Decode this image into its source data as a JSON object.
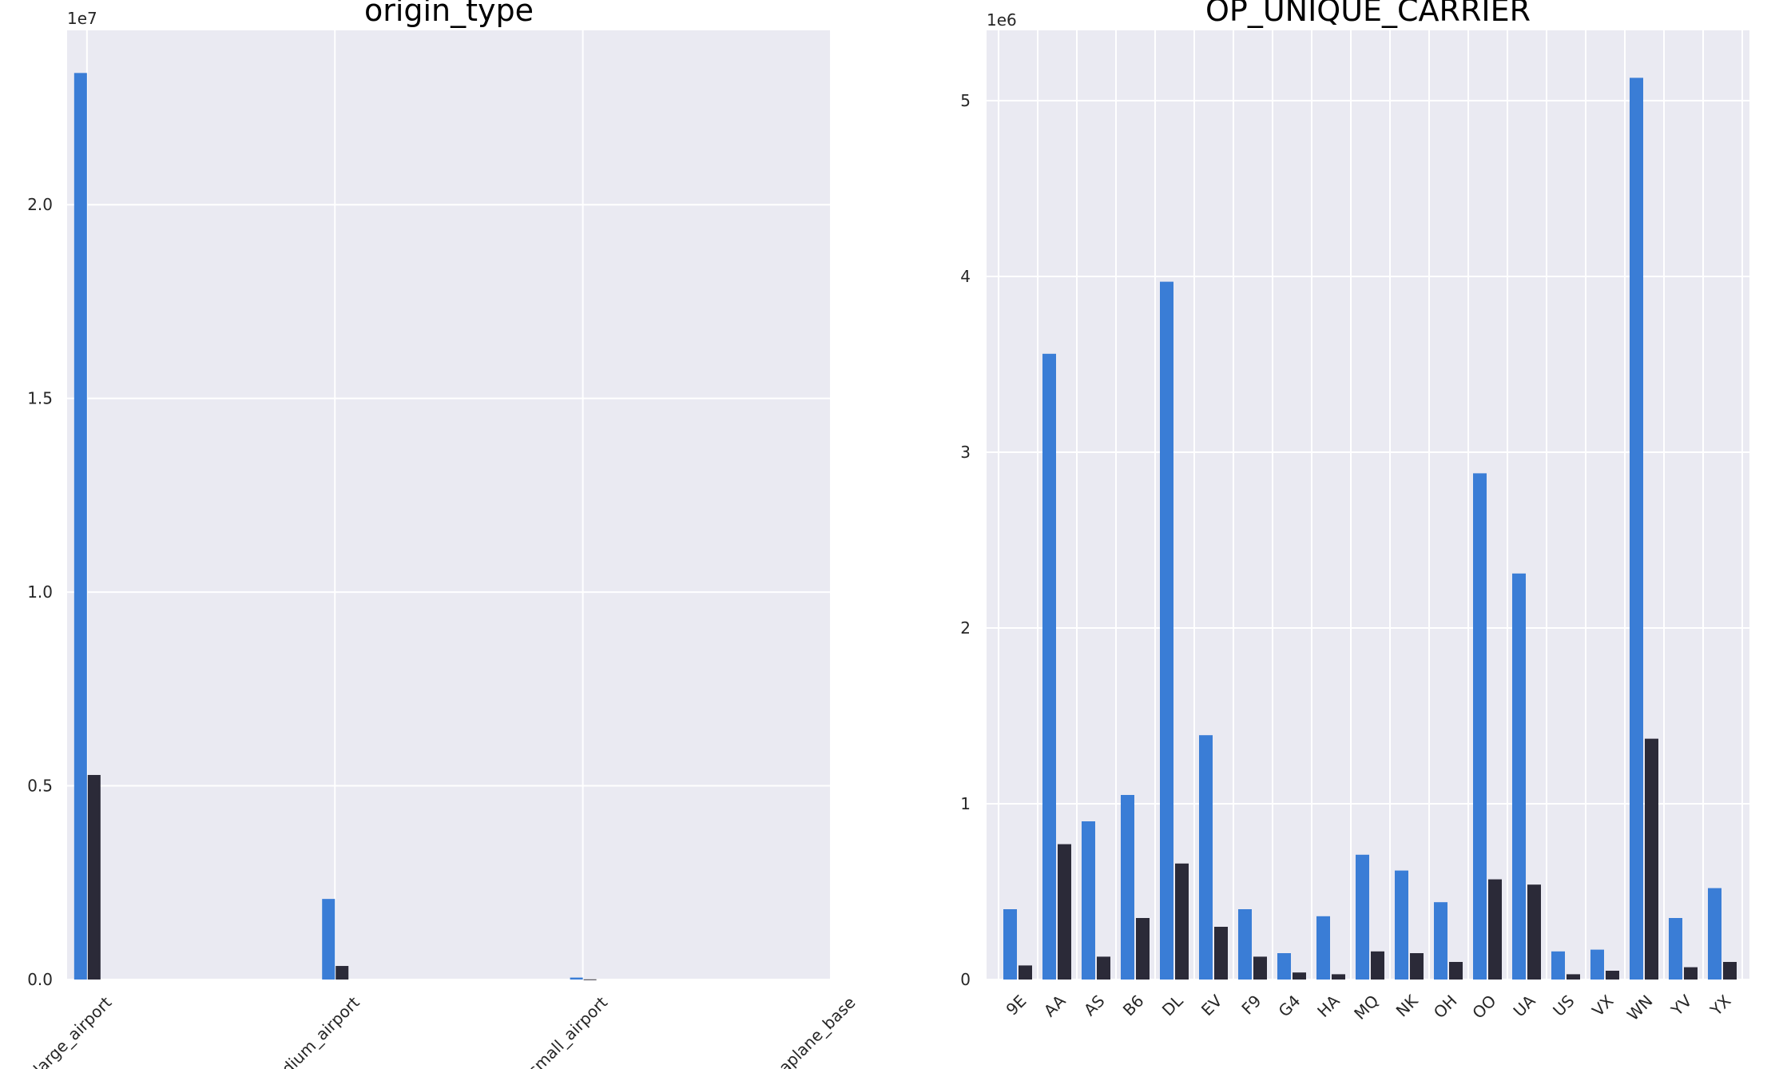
{
  "colors": {
    "series_a": "#3a7dd6",
    "series_b": "#2b2a38",
    "plot_bg": "#eaeaf2",
    "grid": "#ffffff"
  },
  "chart_data": [
    {
      "type": "bar",
      "title": "origin_type",
      "xlabel": "",
      "ylabel": "",
      "y_offset_label": "1e7",
      "y_scale": 10000000,
      "ylim": [
        0,
        24500000
      ],
      "yticks": [
        0,
        5000000,
        10000000,
        15000000,
        20000000
      ],
      "ytick_labels": [
        "0.0",
        "0.5",
        "1.0",
        "1.5",
        "2.0"
      ],
      "xlim": [
        -0.08,
        3.0
      ],
      "xticks": [
        0,
        1,
        2,
        3
      ],
      "categories": [
        "large_airport",
        "medium_airport",
        "small_airport",
        "seaplane_base"
      ],
      "category_labels_visible": [
        "large_airport",
        "dium_airport",
        "small_airport",
        "aplane_base"
      ],
      "grid": true,
      "legend": "none",
      "series": [
        {
          "values": [
            23400000,
            2080000,
            50000,
            0
          ]
        },
        {
          "values": [
            5280000,
            350000,
            5000,
            0
          ]
        }
      ]
    },
    {
      "type": "bar",
      "title": "OP_UNIQUE_CARRIER",
      "xlabel": "",
      "ylabel": "",
      "y_offset_label": "1e6",
      "y_scale": 1000000,
      "ylim": [
        0,
        5400000
      ],
      "yticks": [
        0,
        1000000,
        2000000,
        3000000,
        4000000,
        5000000
      ],
      "ytick_labels": [
        "0",
        "1",
        "2",
        "3",
        "4",
        "5"
      ],
      "categories": [
        "9E",
        "AA",
        "AS",
        "B6",
        "DL",
        "EV",
        "F9",
        "G4",
        "HA",
        "MQ",
        "NK",
        "OH",
        "OO",
        "UA",
        "US",
        "VX",
        "WN",
        "YV",
        "YX"
      ],
      "grid": true,
      "legend": "none",
      "series": [
        {
          "values": [
            400000,
            3560000,
            900000,
            1050000,
            3970000,
            1390000,
            400000,
            150000,
            360000,
            710000,
            620000,
            440000,
            2880000,
            2310000,
            160000,
            170000,
            5130000,
            350000,
            520000
          ]
        },
        {
          "values": [
            80000,
            770000,
            130000,
            350000,
            660000,
            300000,
            130000,
            40000,
            30000,
            160000,
            150000,
            100000,
            570000,
            540000,
            30000,
            50000,
            1370000,
            70000,
            100000
          ]
        }
      ]
    }
  ]
}
